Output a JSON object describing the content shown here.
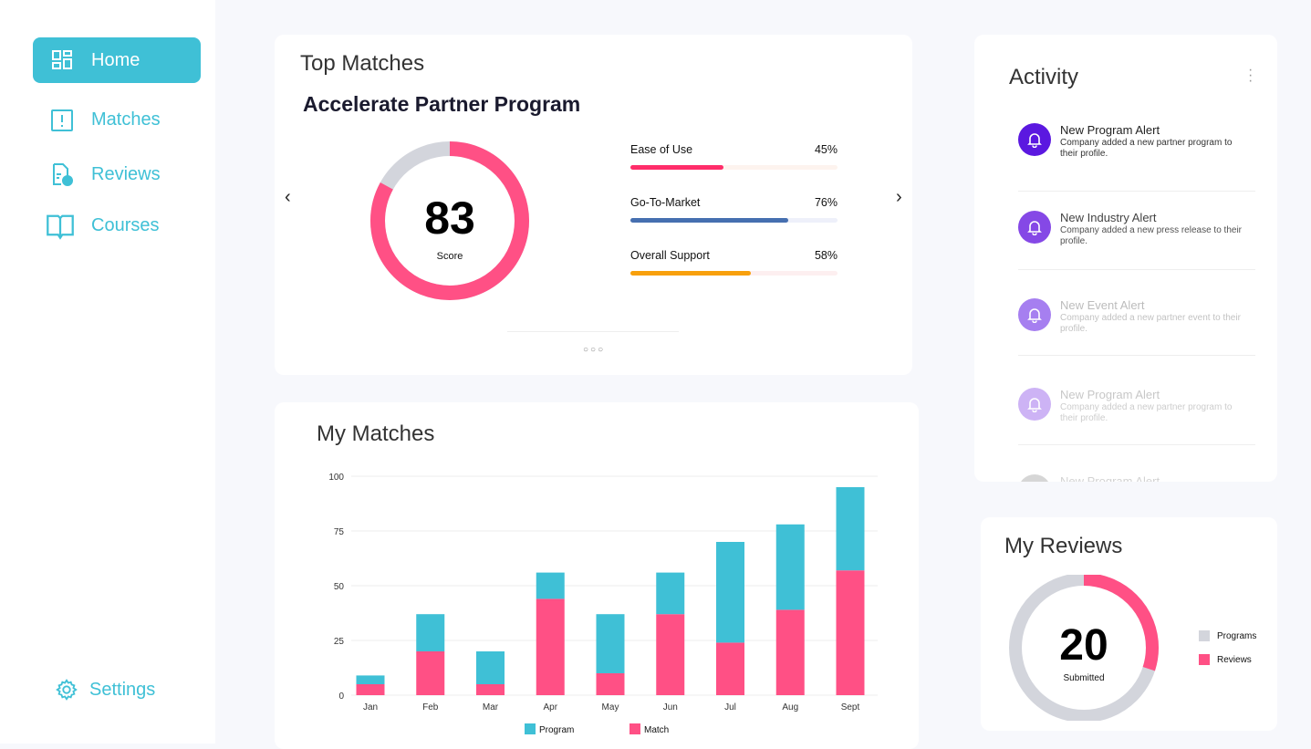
{
  "sidebar": {
    "items": [
      {
        "label": "Home",
        "icon": "grid-icon",
        "active": true
      },
      {
        "label": "Matches",
        "icon": "clipboard-alert-icon"
      },
      {
        "label": "Reviews",
        "icon": "document-question-icon"
      },
      {
        "label": "Courses",
        "icon": "book-icon"
      }
    ],
    "settings": {
      "label": "Settings",
      "icon": "gear-icon"
    }
  },
  "top_matches": {
    "title": "Top Matches",
    "program": "Accelerate Partner Program",
    "score": 83,
    "score_label": "Score",
    "score_color": "#ff5085",
    "metrics": [
      {
        "label": "Ease of Use",
        "value": "45%",
        "fraction": 0.45,
        "color": "#ff2d6a",
        "track": "#fdf3ee"
      },
      {
        "label": "Go-To-Market",
        "value": "76%",
        "fraction": 0.76,
        "color": "#466fb0",
        "track": "#eef0fa"
      },
      {
        "label": "Overall Support",
        "value": "58%",
        "fraction": 0.58,
        "color": "#f8a00c",
        "track": "#fdeff0"
      }
    ]
  },
  "activity": {
    "title": "Activity",
    "items": [
      {
        "title": "New Program Alert",
        "desc": "Company added a new partner program to their profile.",
        "color": "#5b18e0"
      },
      {
        "title": "New Industry Alert",
        "desc": "Company added a new press release to their profile.",
        "color": "#8548e6"
      },
      {
        "title": "New Event Alert",
        "desc": "Company added a new partner event to their profile.",
        "color": "#a67ff0"
      },
      {
        "title": "New Program Alert",
        "desc": "Company added a new partner program to their profile.",
        "color": "#cdb3f5"
      },
      {
        "title": "New Program Alert",
        "desc": "",
        "color": "#d6d6d6"
      }
    ]
  },
  "reviews": {
    "title": "My Reviews",
    "value": 20,
    "label": "Submitted",
    "fraction_reviews": 0.3,
    "legend": [
      {
        "label": "Programs",
        "color": "#d3d5dc"
      },
      {
        "label": "Reviews",
        "color": "#ff5085"
      }
    ]
  },
  "chart_data": {
    "type": "bar",
    "stacked": true,
    "title": "My Matches",
    "categories": [
      "Jan",
      "Feb",
      "Mar",
      "Apr",
      "May",
      "Jun",
      "Jul",
      "Aug",
      "Sept"
    ],
    "series": [
      {
        "name": "Match",
        "color": "#ff5085",
        "values": [
          5,
          20,
          5,
          44,
          10,
          37,
          24,
          39,
          57
        ]
      },
      {
        "name": "Program",
        "color": "#3fc0d6",
        "values": [
          4,
          17,
          15,
          12,
          27,
          19,
          46,
          39,
          38
        ]
      }
    ],
    "yticks": [
      0,
      25,
      50,
      75,
      100
    ],
    "ylim": [
      0,
      100
    ],
    "grid": true,
    "legend": "bottom"
  }
}
